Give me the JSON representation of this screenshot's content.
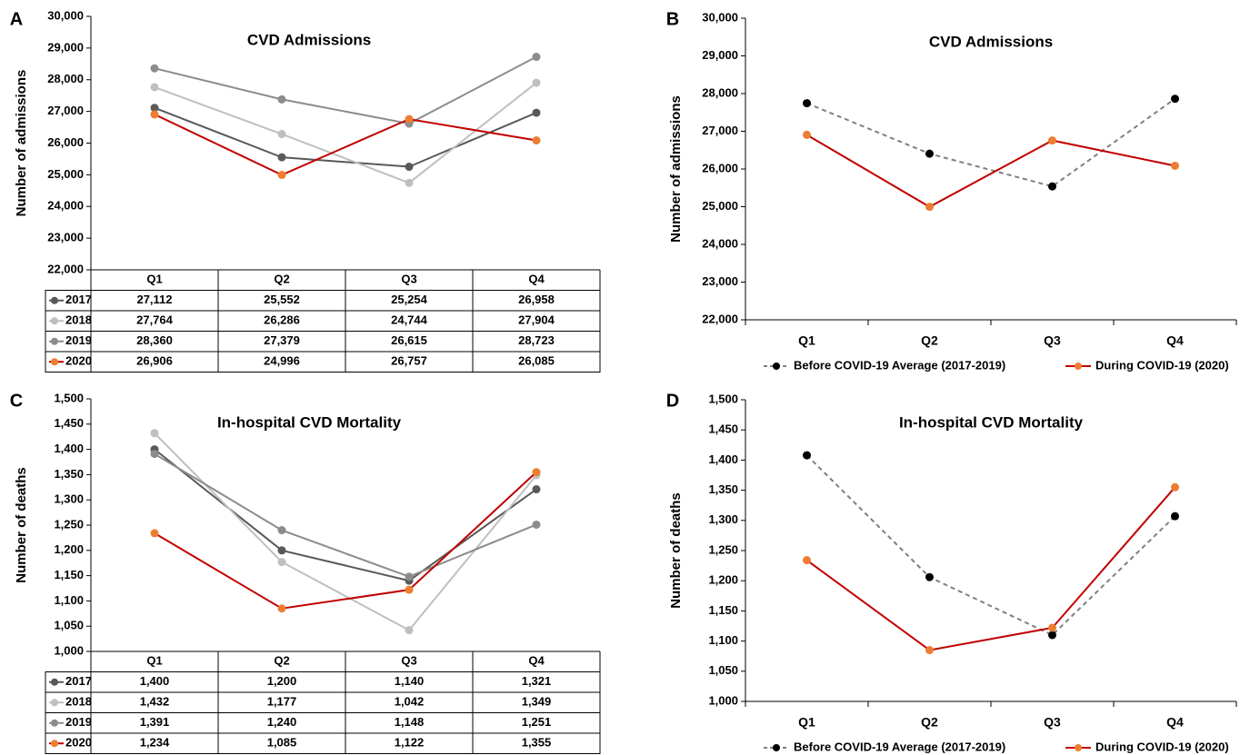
{
  "chart_data": [
    {
      "type": "line",
      "panel_label": "A",
      "title": "CVD Admissions",
      "y_label": "Number of admissions",
      "categories": [
        "Q1",
        "Q2",
        "Q3",
        "Q4"
      ],
      "ylim": [
        22000,
        30000
      ],
      "yticks": [
        {
          "value": 22000,
          "label": "22,000"
        },
        {
          "value": 23000,
          "label": "23,000"
        },
        {
          "value": 24000,
          "label": "24,000"
        },
        {
          "value": 25000,
          "label": "25,000"
        },
        {
          "value": 26000,
          "label": "26,000"
        },
        {
          "value": 27000,
          "label": "27,000"
        },
        {
          "value": 28000,
          "label": "28,000"
        },
        {
          "value": 29000,
          "label": "29,000"
        },
        {
          "value": 30000,
          "label": "30,000"
        }
      ],
      "grid": false,
      "data_table": true,
      "series": [
        {
          "name": "2017",
          "color": "#595959",
          "values": [
            27112,
            25552,
            25254,
            26958
          ],
          "value_labels": [
            "27,112",
            "25,552",
            "25,254",
            "26,958"
          ]
        },
        {
          "name": "2018",
          "color": "#bfbfbf",
          "values": [
            27764,
            26286,
            24744,
            27904
          ],
          "value_labels": [
            "27,764",
            "26,286",
            "24,744",
            "27,904"
          ]
        },
        {
          "name": "2019",
          "color": "#8c8c8c",
          "values": [
            28360,
            27379,
            26615,
            28723
          ],
          "value_labels": [
            "28,360",
            "27,379",
            "26,615",
            "28,723"
          ]
        },
        {
          "name": "2020",
          "color": "#c00000",
          "marker_color": "#ed7d31",
          "values": [
            26906,
            24996,
            26757,
            26085
          ],
          "value_labels": [
            "26,906",
            "24,996",
            "26,757",
            "26,085"
          ]
        }
      ]
    },
    {
      "type": "line",
      "panel_label": "B",
      "title": "CVD Admissions",
      "y_label": "Number of admissions",
      "categories": [
        "Q1",
        "Q2",
        "Q3",
        "Q4"
      ],
      "ylim": [
        22000,
        30000
      ],
      "yticks": [
        {
          "value": 22000,
          "label": "22,000"
        },
        {
          "value": 23000,
          "label": "23,000"
        },
        {
          "value": 24000,
          "label": "24,000"
        },
        {
          "value": 25000,
          "label": "25,000"
        },
        {
          "value": 26000,
          "label": "26,000"
        },
        {
          "value": 27000,
          "label": "27,000"
        },
        {
          "value": 28000,
          "label": "28,000"
        },
        {
          "value": 29000,
          "label": "29,000"
        },
        {
          "value": 30000,
          "label": "30,000"
        }
      ],
      "grid": false,
      "legend": "bottom",
      "series": [
        {
          "name": "Before COVID-19 Average (2017-2019)",
          "color": "#7f7f7f",
          "marker_color": "#000000",
          "dashed": true,
          "values": [
            27745,
            26406,
            25538,
            27862
          ]
        },
        {
          "name": "During COVID-19 (2020)",
          "color": "#c00000",
          "marker_color": "#ed7d31",
          "values": [
            26906,
            24996,
            26757,
            26085
          ]
        }
      ]
    },
    {
      "type": "line",
      "panel_label": "C",
      "title": "In-hospital CVD Mortality",
      "y_label": "Number of deaths",
      "categories": [
        "Q1",
        "Q2",
        "Q3",
        "Q4"
      ],
      "ylim": [
        1000,
        1500
      ],
      "yticks": [
        {
          "value": 1000,
          "label": "1,000"
        },
        {
          "value": 1050,
          "label": "1,050"
        },
        {
          "value": 1100,
          "label": "1,100"
        },
        {
          "value": 1150,
          "label": "1,150"
        },
        {
          "value": 1200,
          "label": "1,200"
        },
        {
          "value": 1250,
          "label": "1,250"
        },
        {
          "value": 1300,
          "label": "1,300"
        },
        {
          "value": 1350,
          "label": "1,350"
        },
        {
          "value": 1400,
          "label": "1,400"
        },
        {
          "value": 1450,
          "label": "1,450"
        },
        {
          "value": 1500,
          "label": "1,500"
        }
      ],
      "grid": false,
      "data_table": true,
      "series": [
        {
          "name": "2017",
          "color": "#595959",
          "values": [
            1400,
            1200,
            1140,
            1321
          ],
          "value_labels": [
            "1,400",
            "1,200",
            "1,140",
            "1,321"
          ]
        },
        {
          "name": "2018",
          "color": "#bfbfbf",
          "values": [
            1432,
            1177,
            1042,
            1349
          ],
          "value_labels": [
            "1,432",
            "1,177",
            "1,042",
            "1,349"
          ]
        },
        {
          "name": "2019",
          "color": "#8c8c8c",
          "values": [
            1391,
            1240,
            1148,
            1251
          ],
          "value_labels": [
            "1,391",
            "1,240",
            "1,148",
            "1,251"
          ]
        },
        {
          "name": "2020",
          "color": "#c00000",
          "marker_color": "#ed7d31",
          "values": [
            1234,
            1085,
            1122,
            1355
          ],
          "value_labels": [
            "1,234",
            "1,085",
            "1,122",
            "1,355"
          ]
        }
      ]
    },
    {
      "type": "line",
      "panel_label": "D",
      "title": "In-hospital CVD Mortality",
      "y_label": "Number of deaths",
      "categories": [
        "Q1",
        "Q2",
        "Q3",
        "Q4"
      ],
      "ylim": [
        1000,
        1500
      ],
      "yticks": [
        {
          "value": 1000,
          "label": "1,000"
        },
        {
          "value": 1050,
          "label": "1,050"
        },
        {
          "value": 1100,
          "label": "1,100"
        },
        {
          "value": 1150,
          "label": "1,150"
        },
        {
          "value": 1200,
          "label": "1,200"
        },
        {
          "value": 1250,
          "label": "1,250"
        },
        {
          "value": 1300,
          "label": "1,300"
        },
        {
          "value": 1350,
          "label": "1,350"
        },
        {
          "value": 1400,
          "label": "1,400"
        },
        {
          "value": 1450,
          "label": "1,450"
        },
        {
          "value": 1500,
          "label": "1,500"
        }
      ],
      "grid": false,
      "legend": "bottom",
      "series": [
        {
          "name": "Before COVID-19 Average (2017-2019)",
          "color": "#7f7f7f",
          "marker_color": "#000000",
          "dashed": true,
          "values": [
            1408,
            1206,
            1110,
            1307
          ]
        },
        {
          "name": "During COVID-19 (2020)",
          "color": "#c00000",
          "marker_color": "#ed7d31",
          "values": [
            1234,
            1085,
            1122,
            1355
          ]
        }
      ]
    }
  ]
}
